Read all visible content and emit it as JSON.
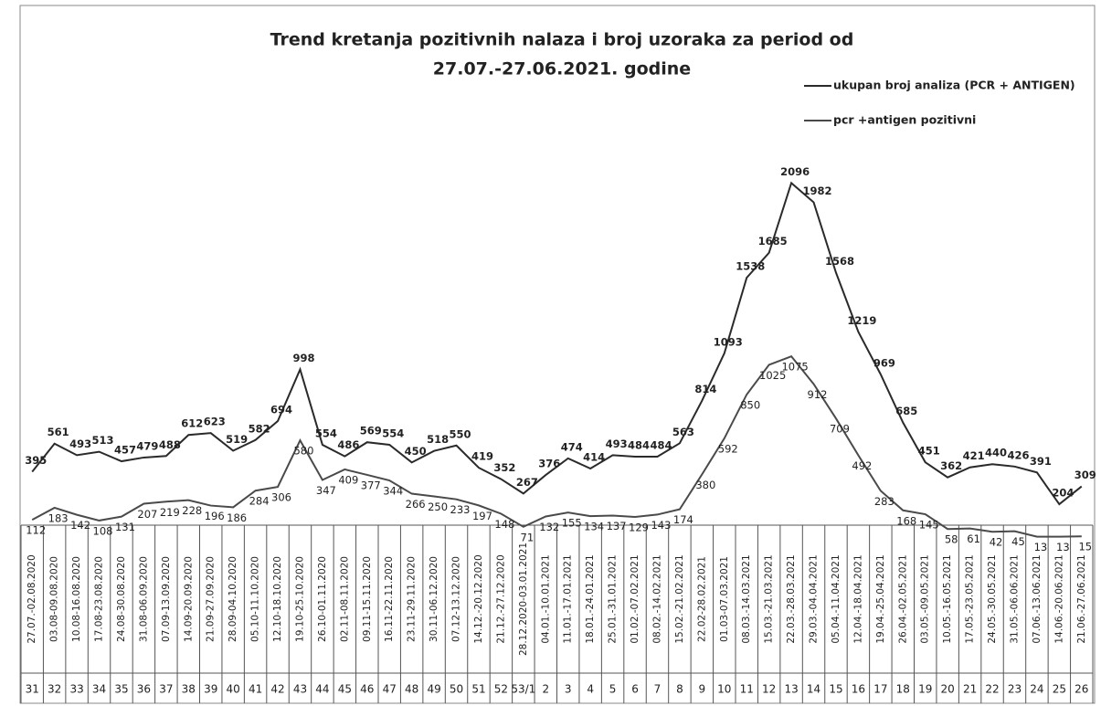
{
  "chart_data": {
    "type": "line",
    "title": [
      "Trend kretanja pozitivnih nalaza i broj uzoraka za period od",
      "27.07.-27.06.2021. godine"
    ],
    "categories": [
      "27.07.-02.08.2020",
      "03.08-09.08.2020",
      "10.08-16.08.2020",
      "17.08-23.08.2020",
      "24.08-30.08.2020",
      "31.08-06.09.2020",
      "07.09-13.09.2020",
      "14.09-20.09.2020",
      "21.09-27.09.2020",
      "28.09-04.10.2020",
      "05.10-11.10.2020",
      "12.10-18.10.2020",
      "19.10-25.10.2020",
      "26.10-01.11.2020",
      "02.11-08.11.2020",
      "09.11-15.11.2020",
      "16.11-22.11.2020",
      "23.11-29.11.2020",
      "30.11-06.12.2020",
      "07.12-13.12.2020",
      "14.12.-20.12.2020",
      "21.12.-27.12.2020",
      "28.12.2020-03.01.2021",
      "04.01.-10.01.2021",
      "11.01.-17.01.2021",
      "18.01.-24.01.2021",
      "25.01.-31.01.2021",
      "01.02.-07.02.2021",
      "08.02.-14.02.2021",
      "15.02.-21.02.2021",
      "22.02-28.02.2021",
      "01.03-07.03.2021",
      "08.03.-14.03.2021",
      "15.03.-21.03.2021",
      "22.03.-28.03.2021",
      "29.03.-04.04.2021",
      "05.04.-11.04.2021",
      "12.04.-18.04.2021",
      "19.04.-25.04.2021",
      "26.04.-02.05.2021",
      "03.05.-09.05.2021",
      "10.05.-16.05.2021",
      "17.05.-23.05.2021",
      "24.05.-30.05.2021",
      "31.05.-06.06.2021",
      "07.06.-13.06.2021",
      "14.06.-20.06.2021",
      "21.06.-27.06.2021"
    ],
    "weeks": [
      "31",
      "32",
      "33",
      "34",
      "35",
      "36",
      "37",
      "38",
      "39",
      "40",
      "41",
      "42",
      "43",
      "44",
      "45",
      "46",
      "47",
      "48",
      "49",
      "50",
      "51",
      "52",
      "53/1",
      "2",
      "3",
      "4",
      "5",
      "6",
      "7",
      "8",
      "9",
      "10",
      "11",
      "12",
      "13",
      "14",
      "15",
      "16",
      "17",
      "18",
      "19",
      "20",
      "21",
      "22",
      "23",
      "24",
      "25",
      "26"
    ],
    "series": [
      {
        "name": "ukupan broj analiza (PCR + ANTIGEN)",
        "color": "#2a2a2a",
        "values": [
          395,
          561,
          493,
          513,
          457,
          479,
          488,
          612,
          623,
          519,
          582,
          694,
          998,
          554,
          486,
          569,
          554,
          450,
          518,
          550,
          419,
          352,
          267,
          376,
          474,
          414,
          493,
          484,
          484,
          563,
          814,
          1093,
          1538,
          1685,
          2096,
          1982,
          1568,
          1219,
          969,
          685,
          451,
          362,
          421,
          440,
          426,
          391,
          204,
          309
        ]
      },
      {
        "name": "pcr +antigen pozitivni",
        "color": "#4a4a4a",
        "values": [
          112,
          183,
          142,
          108,
          131,
          207,
          219,
          228,
          196,
          186,
          284,
          306,
          580,
          347,
          409,
          377,
          344,
          266,
          250,
          233,
          197,
          148,
          71,
          132,
          155,
          134,
          137,
          129,
          143,
          174,
          380,
          592,
          850,
          1025,
          1075,
          912,
          709,
          492,
          283,
          168,
          145,
          58,
          61,
          42,
          45,
          13,
          13,
          15
        ]
      }
    ],
    "ylim": [
      0,
      2200
    ]
  }
}
